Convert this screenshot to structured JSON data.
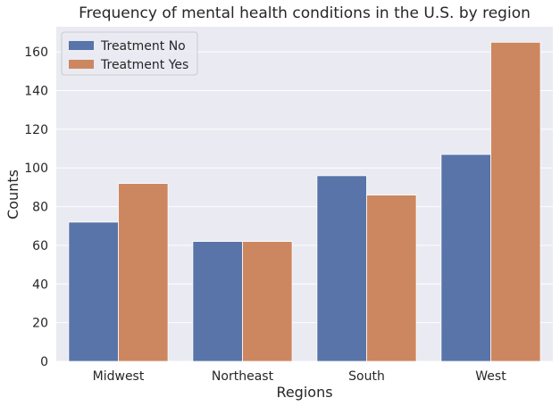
{
  "chart_data": {
    "type": "bar",
    "title": "Frequency of mental health conditions in the U.S. by region",
    "xlabel": "Regions",
    "ylabel": "Counts",
    "categories": [
      "Midwest",
      "Northeast",
      "South",
      "West"
    ],
    "series": [
      {
        "name": "Treatment No",
        "values": [
          72,
          62,
          96,
          107
        ],
        "color": "#5874a8"
      },
      {
        "name": "Treatment Yes",
        "values": [
          92,
          62,
          86,
          165
        ],
        "color": "#cd8760"
      }
    ],
    "ylim": [
      0,
      173
    ],
    "yticks": [
      0,
      20,
      40,
      60,
      80,
      100,
      120,
      140,
      160
    ],
    "grid": true,
    "legend_position": "top-left",
    "background": "#eaeaf2"
  }
}
